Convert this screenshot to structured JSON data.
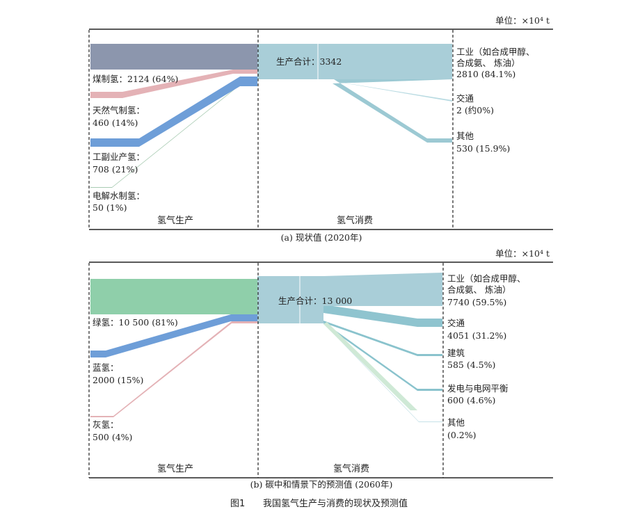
{
  "figure": {
    "caption_number": "图1",
    "caption_title": "我国氢气生产与消费的现状及预测值"
  },
  "chart_data": [
    {
      "type": "sankey",
      "caption": "(a) 现状值 (2020年)",
      "unit": "单位：×10⁴ t",
      "section_labels": {
        "production": "氢气生产",
        "consumption": "氢气消费"
      },
      "total": {
        "label": "生产合计：3342",
        "value": 3342
      },
      "sources": [
        {
          "label": "煤制氢：2124 (64%)",
          "value": 2124,
          "color": "#e4b2b6"
        },
        {
          "label_line1": "天然气制氢：",
          "label_line2": "460 (14%)",
          "value": 460,
          "color": "#e4b2b6"
        },
        {
          "label_line1": "工副业产氢：",
          "label_line2": "708 (21%)",
          "value": 708,
          "color": "#6e9ed8"
        },
        {
          "label_line1": "电解水制氢：",
          "label_line2": "50 (1%)",
          "value": 50,
          "color": "#a8cbb2"
        }
      ],
      "targets": [
        {
          "label_line1": "工业（如合成甲醇、",
          "label_line2": "合成氨、 炼油）",
          "label_line3": "2810 (84.1%)",
          "value": 2810
        },
        {
          "label_line1": "交通",
          "label_line2": "2 (约0%)",
          "value": 2
        },
        {
          "label_line1": "其他",
          "label_line2": "530 (15.9%)",
          "value": 530
        }
      ],
      "colors": {
        "top_band": "#8c96ad",
        "hub": "#a9ced8",
        "flow": "#9cc9d3"
      }
    },
    {
      "type": "sankey",
      "caption": "(b) 碳中和情景下的预测值 (2060年)",
      "unit": "单位：×10⁴ t",
      "section_labels": {
        "production": "氢气生产",
        "consumption": "氢气消费"
      },
      "total": {
        "label": "生产合计：13 000",
        "value": 13000
      },
      "sources": [
        {
          "label": "绿氢：10 500 (81%)",
          "value": 10500,
          "color": "#7fc4a4"
        },
        {
          "label_line1": "蓝氢：",
          "label_line2": "2000 (15%)",
          "value": 2000,
          "color": "#6e9ed8"
        },
        {
          "label_line1": "灰氢：",
          "label_line2": "500 (4%)",
          "value": 500,
          "color": "#e4b2b6"
        }
      ],
      "targets": [
        {
          "label_line1": "工业（如合成甲醇、",
          "label_line2": "合成氨、 炼油）",
          "label_line3": "7740 (59.5%)",
          "value": 7740
        },
        {
          "label_line1": "交通",
          "label_line2": "4051 (31.2%)",
          "value": 4051
        },
        {
          "label_line1": "建筑",
          "label_line2": "585 (4.5%)",
          "value": 585
        },
        {
          "label_line1": "发电与电网平衡",
          "label_line2": "600 (4.6%)",
          "value": 600
        },
        {
          "label_line1": "其他",
          "label_line2": "(0.2%)",
          "value": 26
        }
      ],
      "colors": {
        "top_band": "#8fcfaa",
        "hub": "#a9ced8",
        "flow": "#9cc9d3"
      }
    }
  ]
}
